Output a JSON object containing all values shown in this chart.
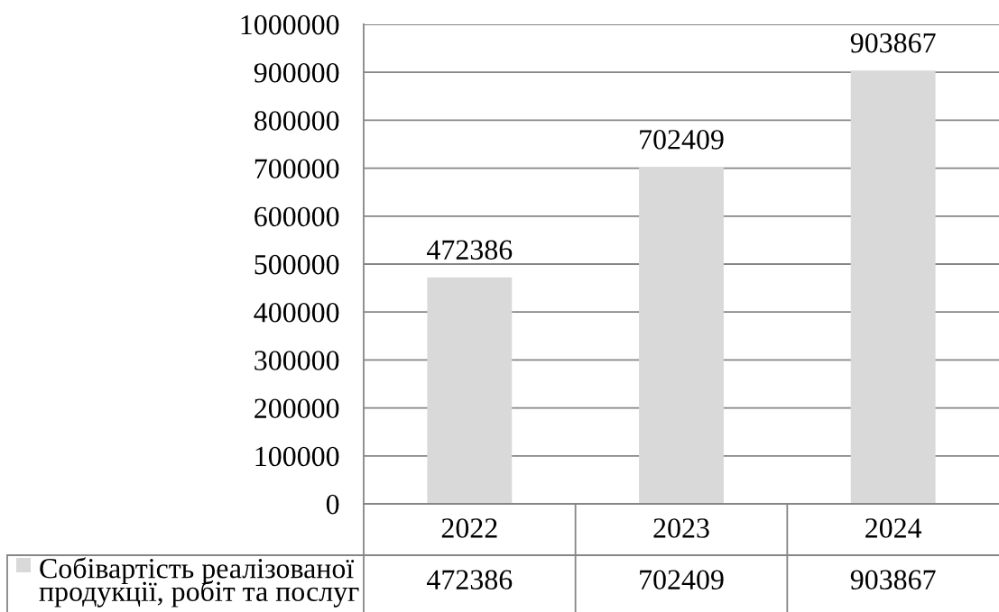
{
  "chart_data": {
    "type": "bar",
    "categories": [
      "2022",
      "2023",
      "2024"
    ],
    "series": [
      {
        "name": "Собівартість реалізованої продукції, робіт та послуг",
        "color": "#d9d9d9",
        "values": [
          472386,
          702409,
          903867
        ]
      }
    ],
    "ylim": [
      0,
      1000000
    ],
    "yticks": [
      0,
      100000,
      200000,
      300000,
      400000,
      500000,
      600000,
      700000,
      800000,
      900000,
      1000000
    ],
    "grid": "y",
    "data_labels": true,
    "legend": "bottom left",
    "annotations": [
      "472386",
      "702409",
      "903867"
    ]
  }
}
